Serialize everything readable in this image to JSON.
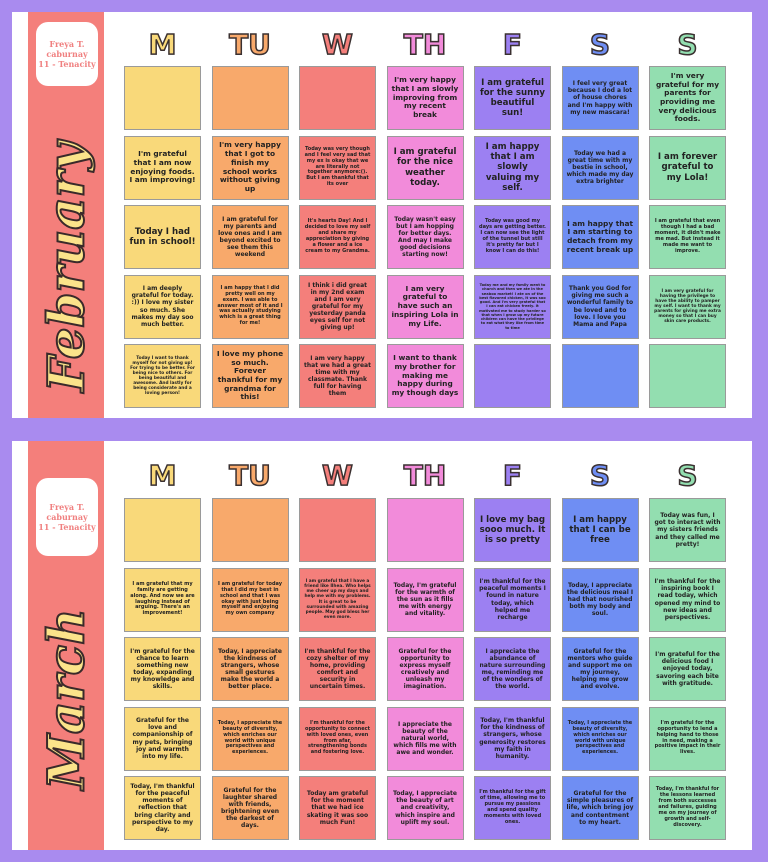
{
  "calendars": [
    {
      "month": "February",
      "name_lines": [
        "Freya T.",
        "caburnay",
        "11 - Tenacity"
      ],
      "days": [
        "M",
        "TU",
        "W",
        "TH",
        "F",
        "S",
        "S"
      ],
      "rows": [
        [
          null,
          null,
          null,
          "I'm very happy that I am slowly improving from my recent break",
          "I am grateful for the sunny beautiful sun!",
          "I feel very great because I dod a lot of house chores and I'm happy with my new mascara!",
          "I'm very grateful for my parents for providing me very delicious foods."
        ],
        [
          "I'm grateful that I am now enjoying foods. I am improving!",
          "I'm very happy that I got to finish my school works without giving up",
          "Today was very though and I feel very sad that my ex is okay that we are literally not together anymore:(). But I am thankful that its over",
          "I am grateful for the nice weather today.",
          "I am happy that I am slowly valuing my self.",
          "Today we had a great time with my bestie in school, which made my day extra brighter",
          "I am forever grateful to my Lola!"
        ],
        [
          "Today I had fun in school!",
          "I am grateful for my parents and love ones and I am beyond excited to see them this weekend",
          "It's hearts Day! And I decided to love my self and share my appreciation by giving a flower and a ice cream to my Grandma.",
          "Today wasn't easy but I am hopping for better days. And may I make good decisions starting now!",
          "Today was good my days are getting better. I can now see the light of the tunnel but still it's pretty far but I know I can do this!",
          "I am happy that I am starting to detach from my recent break up",
          "I am grateful that even though I had a bad moment, it didn't make me mad. But instead it made me want to improve."
        ],
        [
          "I am deeply grateful for today. :)) I love my sister so much. She makes my day soo much better.",
          "I am happy that I did pretty well on my exam. I was able to answer most of it and I was actually studying which is a great thing for me!",
          "I think i did great in my 2nd exam and I am very grateful for my yesterday panda eyes self for not giving up!",
          "I am very grateful to have such an inspiring Lola in my Life.",
          "Today me and my family went to church and then we ate in the seaboo market! I ate on of the best flavored chicken, it was soo good. And I'm very grateful that I can eat chicken freely. It motivated me to study harder so that when I grow up my future children can have the privilege to eat what they like from time to time",
          "Thank you God for giving me such a wonderful family to be loved and to love. I love you Mama and Papa",
          "I am very grateful for having the privilege to have the ability to pamper my self. I want to thank my parents for giving me extra money so that I can buy skin care products."
        ],
        [
          "Today I want to thank myself for not giving up! For trying to be better. For being nice to others. For being beautiful and awesome. And lastly for being considerate and a loving person!",
          "I love my phone so much. Forever thankful for my grandma for this!",
          "I am very happy that we had a great time with my classmate. Thank full for having them",
          "I want to thank my brother for making me happy during my though days",
          null,
          null,
          null
        ]
      ]
    },
    {
      "month": "March",
      "name_lines": [
        "Freya T.",
        "caburnay",
        "11 - Tenacity"
      ],
      "days": [
        "M",
        "TU",
        "W",
        "TH",
        "F",
        "S",
        "S"
      ],
      "rows": [
        [
          null,
          null,
          null,
          null,
          "I love my bag sooo much. It is so pretty",
          "I am happy that I can be free",
          "Today was fun, I got to interact with my sisters friends and they called me pretty!"
        ],
        [
          "I am grateful that my family are getting along. And now we are laughing instead of arguing. There's an improvement!",
          "I am grateful for today that I did my best in school and that I was okay with just being myself and enjoying my own company",
          "I am grateful that I have a friend like Ilhea. Who helps me cheer up my days and help me with my problems. It is great to be surrounded with amazing people. May god bless her even more.",
          "Today, I'm grateful for the warmth of the sun as it fills me with energy and vitality.",
          "I'm thankful for the peaceful moments I found in nature today, which helped me recharge",
          "Today, I appreciate the delicious meal I had that nourished both my body and soul.",
          "I'm thankful for the inspiring book I read today, which opened my mind to new ideas and perspectives."
        ],
        [
          "I'm grateful for the chance to learn something new today, expanding my knowledge and skills.",
          "Today, I appreciate the kindness of strangers, whose small gestures make the world a better place.",
          "I'm thankful for the cozy shelter of my home, providing comfort and security in uncertain times.",
          "Grateful for the opportunity to express myself creatively and unleash my imagination.",
          "I appreciate the abundance of nature surrounding me, reminding me of the wonders of the world.",
          "Grateful for the mentors who guide and support me on my journey, helping me grow and evolve.",
          "I'm grateful for the delicious food I enjoyed today, savoring each bite with gratitude."
        ],
        [
          "Grateful for the love and companionship of my pets, bringing joy and warmth into my life.",
          "Today, I appreciate the beauty of diversity, which enriches our world with unique perspectives and experiences.",
          "I'm thankful for the opportunity to connect with loved ones, even from afar, strengthening bonds and fostering love.",
          "I appreciate the beauty of the natural world, which fills me with awe and wonder.",
          "Today, I'm thankful for the kindness of strangers, whose generosity restores my faith in humanity.",
          "Today, I appreciate the beauty of diversity, which enriches our world with unique perspectives and experiences.",
          "I'm grateful for the opportunity to lend a helping hand to those in need, making a positive impact in their lives."
        ],
        [
          "Today, I'm thankful for the peaceful moments of reflection that bring clarity and perspective to my day.",
          "Grateful for the laughter shared with friends, brightening even the darkest of days.",
          "Today am grateful for the moment that we had ice skating it was soo much Fun!",
          "Today, I appreciate the beauty of art and creativity, which inspire and uplift my soul.",
          "I'm thankful for the gift of time, allowing me to pursue my passions and spend quality moments with loved ones.",
          "Grateful for the simple pleasures of life, which bring joy and contentment to my heart.",
          "Today, I'm thankful for the lessons learned from both successes and failures, guiding me on my journey of growth and self-discovery."
        ]
      ]
    }
  ]
}
